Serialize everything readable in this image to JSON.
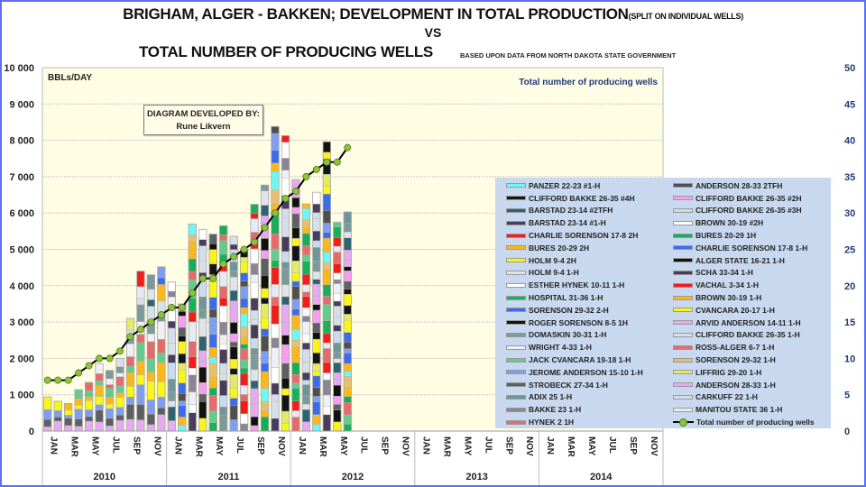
{
  "header": {
    "title_main": "BRIGHAM, ALGER - BAKKEN; DEVELOPMENT IN TOTAL PRODUCTION",
    "title_sub": "(SPLIT ON INDIVIDUAL WELLS)",
    "vs": "VS",
    "title_second": "TOTAL NUMBER OF PRODUCING WELLS",
    "source_note": "BASED UPON DATA FROM NORTH DAKOTA STATE GOVERNMENT"
  },
  "credit_box": {
    "line1": "DIAGRAM DEVELOPED BY:",
    "line2": "Rune Likvern"
  },
  "colors": {
    "plot_bg": "#fffde3",
    "legend_bg": "#c8d8ee",
    "line": "#000000",
    "marker": "#8fc23c",
    "frame": "#5b6ff0"
  },
  "chart_data": {
    "type": "bar",
    "stacked": true,
    "title": "BRIGHAM, ALGER - BAKKEN; DEVELOPMENT IN TOTAL PRODUCTION (SPLIT ON INDIVIDUAL WELLS) VS TOTAL NUMBER OF PRODUCING WELLS",
    "ylabel": "BBLs/DAY",
    "y2label": "Total number of producing wells",
    "ylim": [
      0,
      10000
    ],
    "y2lim": [
      0,
      50
    ],
    "yticks": [
      "0",
      "1 000",
      "2 000",
      "3 000",
      "4 000",
      "5 000",
      "6 000",
      "7 000",
      "8 000",
      "9 000",
      "10 000"
    ],
    "y2ticks": [
      "0",
      "5",
      "10",
      "15",
      "20",
      "25",
      "30",
      "35",
      "40",
      "45",
      "50"
    ],
    "grid": true,
    "legend_placement": "bottom-right (inside plot)",
    "month_labels": [
      "JAN",
      "MAR",
      "MAY",
      "JUL",
      "SEP",
      "NOV"
    ],
    "years": [
      "2010",
      "2011",
      "2012",
      "2013",
      "2014"
    ],
    "x_months_total": 60,
    "bars_total_bbl_per_day": [
      940,
      820,
      760,
      1140,
      1340,
      1860,
      1670,
      2000,
      3100,
      4400,
      4300,
      4520,
      4100,
      3500,
      5700,
      5550,
      5420,
      5650,
      5360,
      4980,
      6240,
      6770,
      8380,
      8130,
      6920,
      6250,
      6570,
      7960,
      5750,
      6030
    ],
    "line_series": {
      "name": "Total number of producing wells",
      "values": [
        7,
        7,
        7,
        8,
        9,
        10,
        10,
        11,
        13,
        14,
        15,
        16,
        17,
        17,
        19,
        21,
        21,
        23,
        24,
        25,
        26,
        28,
        30,
        32,
        33,
        35,
        36,
        37,
        37,
        39
      ]
    },
    "legend": [
      {
        "name": "PANZER 22-23 #1-H",
        "color": "#6ff6f8"
      },
      {
        "name": "CLIFFORD BAKKE 26-35 #4H",
        "color": "#151515"
      },
      {
        "name": "BARSTAD 23-14 #2TFH",
        "color": "#2f6372"
      },
      {
        "name": "BARSTAD 23-14 #1-H",
        "color": "#4a3d5e"
      },
      {
        "name": "CHARLIE SORENSON 17-8 2H",
        "color": "#f21d1d"
      },
      {
        "name": "BURES 20-29 2H",
        "color": "#fbb81e"
      },
      {
        "name": "HOLM 9-4 2H",
        "color": "#fbf31a"
      },
      {
        "name": "HOLM 9-4 1-H",
        "color": "#dfe3ea"
      },
      {
        "name": "ESTHER HYNEK 10-11 1-H",
        "color": "#ffffff"
      },
      {
        "name": "HOSPITAL 31-36 1-H",
        "color": "#19b05a"
      },
      {
        "name": "SORENSON 29-32 2-H",
        "color": "#3e6bea"
      },
      {
        "name": "ROGER SORENSON 8-5 1H",
        "color": "#121212"
      },
      {
        "name": "DOMASKIN 30-31 1-H",
        "color": "#7d9a9b"
      },
      {
        "name": "WRIGHT 4-33 1-H",
        "color": "#eef0f5"
      },
      {
        "name": "JACK CVANCARA 19-18 1-H",
        "color": "#62cc8d"
      },
      {
        "name": "JEROME ANDERSON 15-10 1-H",
        "color": "#7f9ef1"
      },
      {
        "name": "STROBECK 27-34 1-H",
        "color": "#5c5f64"
      },
      {
        "name": "ADIX 25 1-H",
        "color": "#6f9499"
      },
      {
        "name": "BAKKE 23 1-H",
        "color": "#8a8496"
      },
      {
        "name": "HYNEK 2 1H",
        "color": "#e96a6e"
      },
      {
        "name": "ANDERSON 28-33 2TFH",
        "color": "#4f4f4f"
      },
      {
        "name": "CLIFFORD BAKKE 26-35 #2H",
        "color": "#f79ef0"
      },
      {
        "name": "CLIFFORD BAKKE 26-35 #3H",
        "color": "#c9dbef"
      },
      {
        "name": "BROWN 30-19 #2H",
        "color": "#ffffff"
      },
      {
        "name": "BURES 20-29 1H",
        "color": "#18ad5c"
      },
      {
        "name": "CHARLIE SORENSON 17-8 1-H",
        "color": "#3d6ce8"
      },
      {
        "name": "ALGER STATE 16-21 1-H",
        "color": "#111111"
      },
      {
        "name": "SCHA 33-34 1-H",
        "color": "#473c5d"
      },
      {
        "name": "VACHAL 3-34 1-H",
        "color": "#f41b1b"
      },
      {
        "name": "BROWN 30-19 1-H",
        "color": "#fbb81d"
      },
      {
        "name": "CVANCARA 20-17 1-H",
        "color": "#f7f71a"
      },
      {
        "name": "ARVID ANDERSON 14-11 1-H",
        "color": "#e9a8f0"
      },
      {
        "name": "CLIFFORD BAKKE 26-35 1-H",
        "color": "#d7e0ea"
      },
      {
        "name": "ROSS-ALGER 6-7 1-H",
        "color": "#e36b6c"
      },
      {
        "name": "SORENSON 29-32 1-H",
        "color": "#e6c070"
      },
      {
        "name": "LIFFRIG 29-20 1-H",
        "color": "#e2ea6a"
      },
      {
        "name": "ANDERSON 28-33 1-H",
        "color": "#e6aaf2"
      },
      {
        "name": "CARKUFF 22 1-H",
        "color": "#d3deea"
      },
      {
        "name": "MANITOU STATE 36 1-H",
        "color": "#e6eaf5"
      },
      {
        "name": "Total number of producing wells",
        "color": "#000000",
        "marker": "#8fc23c",
        "is_line": true
      }
    ]
  }
}
